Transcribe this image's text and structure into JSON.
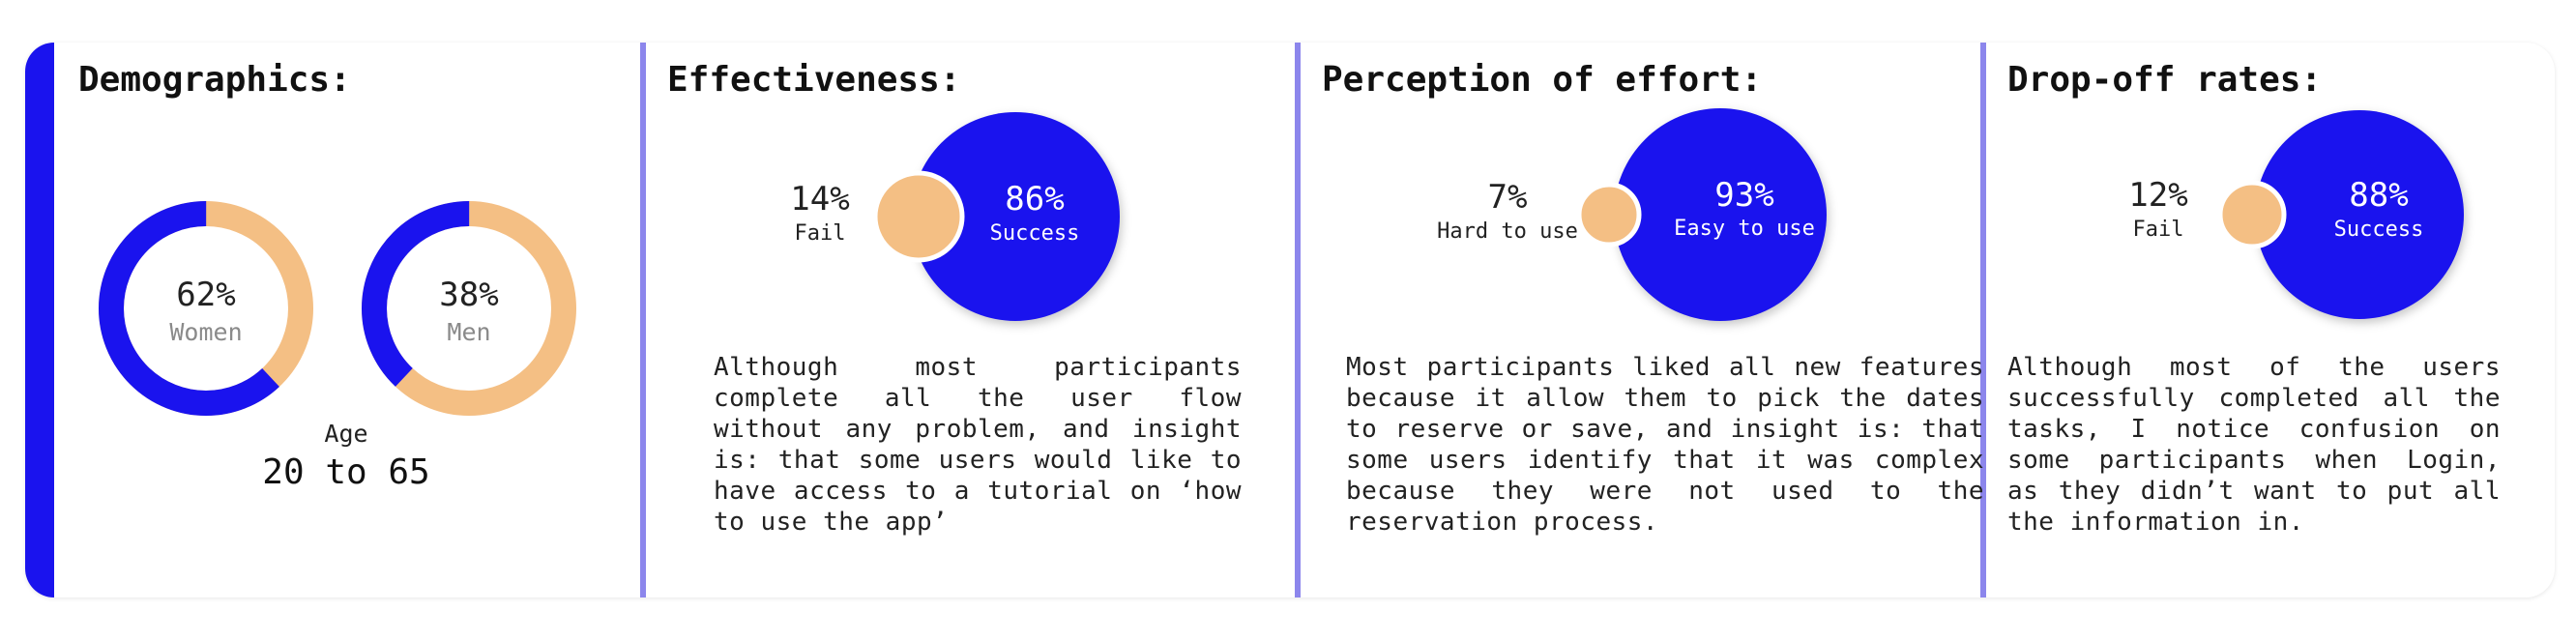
{
  "colors": {
    "primary": "#1a13ee",
    "accent": "#f4bf84",
    "divider": "#8c86ec"
  },
  "chart_data": [
    {
      "type": "pie",
      "title": "Demographics:",
      "series": [
        {
          "name": "Women",
          "value": 62,
          "label": "62%"
        },
        {
          "name": "Men",
          "value": 38,
          "label": "38%"
        }
      ],
      "age": {
        "label": "Age",
        "value": "20 to 65"
      }
    },
    {
      "type": "bubble",
      "title": "Effectiveness:",
      "slices": [
        {
          "name": "Success",
          "value": 86,
          "label": "86%"
        },
        {
          "name": "Fail",
          "value": 14,
          "label": "14%"
        }
      ],
      "description": "Although most participants complete all the user flow without any problem, and insight is: that some users would like to have access to a tutorial on ‘how to use the app’"
    },
    {
      "type": "bubble",
      "title": "Perception of effort:",
      "slices": [
        {
          "name": "Easy to use",
          "value": 93,
          "label": "93%"
        },
        {
          "name": "Hard to use",
          "value": 7,
          "label": "7%"
        }
      ],
      "description": "Most participants liked all new features because it allow them to pick the dates to reserve or save, and insight is: that some users identify that it was complex because they were not used to the reservation process."
    },
    {
      "type": "bubble",
      "title": "Drop-off rates:",
      "slices": [
        {
          "name": "Success",
          "value": 88,
          "label": "88%"
        },
        {
          "name": "Fail",
          "value": 12,
          "label": "12%"
        }
      ],
      "description": "Although most of the users successfully completed all the tasks, I notice confusion on some participants when Login, as they didn’t want to put all the information in."
    }
  ]
}
